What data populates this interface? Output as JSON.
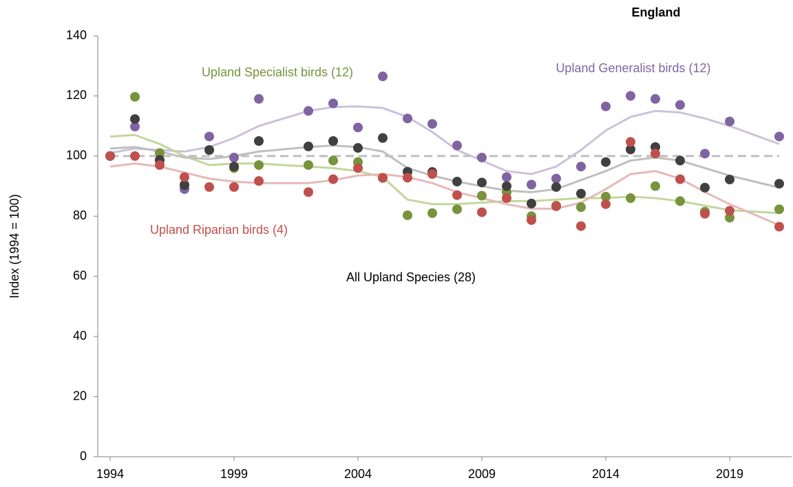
{
  "chart_data": {
    "type": "scatter_trend",
    "title": "England",
    "y_label": "Index (1994 = 100)",
    "x": [
      1994,
      1995,
      1996,
      1997,
      1998,
      1999,
      2000,
      2002,
      2003,
      2004,
      2005,
      2006,
      2007,
      2008,
      2009,
      2010,
      2011,
      2012,
      2013,
      2014,
      2015,
      2016,
      2017,
      2018,
      2019,
      2021
    ],
    "xlim": [
      1993.5,
      2021.5
    ],
    "xticks": [
      1994,
      1999,
      2004,
      2009,
      2014,
      2019
    ],
    "ylim": [
      0,
      140
    ],
    "yticks": [
      0,
      20,
      40,
      60,
      80,
      100,
      120,
      140
    ],
    "reference_line": 100,
    "reference_color": "#bfbfbf",
    "series": [
      {
        "name": "Upland Generalist birds (12)",
        "color": "#8064a2",
        "trend_color": "#ccc1da",
        "values": [
          100,
          109.8,
          98.5,
          89,
          106.5,
          99.5,
          119,
          115,
          117.5,
          109.5,
          126.5,
          112.5,
          110.7,
          103.5,
          99.5,
          93,
          90.5,
          92.5,
          96.5,
          116.5,
          120,
          119,
          117,
          100.8,
          111.5,
          106.5
        ],
        "trend": [
          101,
          102.5,
          102,
          101.5,
          103,
          106,
          110,
          115,
          116.3,
          116.5,
          116,
          113,
          108,
          102,
          98.5,
          95,
          94,
          96.5,
          102,
          108.5,
          113,
          115,
          114.5,
          112.5,
          110,
          104
        ]
      },
      {
        "name": "Upland Specialist birds (12)",
        "color": "#77933c",
        "trend_color": "#c3d69b",
        "values": [
          100,
          119.7,
          101,
          90.5,
          102,
          96,
          97,
          97,
          98.5,
          98,
          92.7,
          80.3,
          81,
          82.3,
          86.8,
          88,
          80,
          83.5,
          83,
          86.5,
          86,
          90,
          85,
          81.5,
          79.5,
          82.3
        ],
        "trend": [
          106.5,
          107,
          104,
          100,
          97,
          97.5,
          97.5,
          96.5,
          96,
          95,
          93,
          85.5,
          84,
          84,
          84.5,
          85,
          85,
          85.5,
          86,
          86,
          86.5,
          86,
          85,
          83.5,
          82,
          81
        ]
      },
      {
        "name": "All Upland Species (28)",
        "color": "#404040",
        "trend_color": "#bfbfbf",
        "values": [
          100,
          112.3,
          98.7,
          90.3,
          102,
          96.5,
          105,
          103.2,
          105,
          102.7,
          106,
          94.8,
          94.7,
          91.5,
          91.2,
          90,
          84.2,
          89.7,
          87.5,
          98,
          102.2,
          103,
          98.5,
          89.5,
          92.2,
          90.8
        ],
        "trend": [
          102.5,
          103,
          101.5,
          99.5,
          99,
          100,
          101.5,
          103,
          103.5,
          103,
          101.5,
          96,
          93.5,
          91.5,
          90,
          88.5,
          88,
          89,
          92,
          95,
          98.5,
          99.5,
          98.5,
          96,
          93.5,
          89.5
        ]
      },
      {
        "name": "Upland Riparian birds (4)",
        "color": "#c0504d",
        "trend_color": "#e6b9b8",
        "values": [
          100,
          100,
          97,
          93,
          89.7,
          89.7,
          91.7,
          88,
          92.3,
          96,
          92.8,
          92.8,
          94,
          87,
          81.3,
          86,
          78.7,
          83.3,
          76.7,
          84,
          104.7,
          100.8,
          92.3,
          80.8,
          81.8,
          76.5
        ],
        "trend": [
          96.5,
          97.5,
          96.5,
          94.5,
          92.5,
          91.5,
          91,
          91,
          92,
          93.5,
          94,
          93,
          91,
          88,
          86,
          84,
          82.5,
          82.5,
          84.5,
          89,
          94,
          95,
          92.5,
          88,
          84,
          77
        ]
      }
    ]
  }
}
